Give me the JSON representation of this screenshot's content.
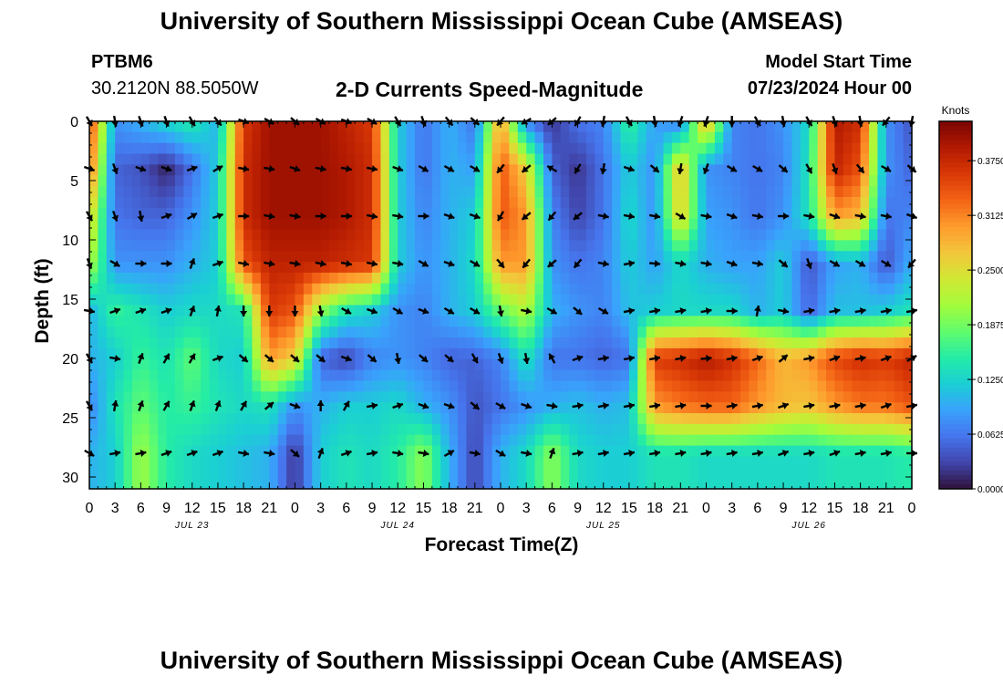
{
  "header": {
    "title": "University of Southern Mississippi Ocean Cube (AMSEAS)",
    "station_id": "PTBM6",
    "station_coords": "30.2120N  88.5050W",
    "chart_title": "2-D Currents Speed-Magnitude",
    "model_start_label": "Model Start Time",
    "model_start_value": "07/23/2024 Hour 00"
  },
  "footer": {
    "title": "University of Southern Mississippi Ocean Cube (AMSEAS)"
  },
  "colors": {
    "colormap": [
      "#30123b",
      "#4145ab",
      "#4675ed",
      "#39a2fc",
      "#1bcfd4",
      "#24eca6",
      "#61fc6c",
      "#a4fc3b",
      "#d1e834",
      "#f3c63a",
      "#fe9b2d",
      "#f36315",
      "#d93806",
      "#b11901",
      "#7a0402"
    ],
    "arrow": "#000000",
    "axis": "#000000"
  },
  "chart_data": {
    "type": "heatmap",
    "title": "2-D Currents Speed-Magnitude",
    "xlabel": "Forecast Time(Z)",
    "ylabel": "Depth (ft)",
    "x_tick_labels": [
      "0",
      "3",
      "6",
      "9",
      "12",
      "15",
      "18",
      "21",
      "0",
      "3",
      "6",
      "9",
      "12",
      "15",
      "18",
      "21",
      "0",
      "3",
      "6",
      "9",
      "12",
      "15",
      "18",
      "21",
      "0",
      "3",
      "6",
      "9",
      "12",
      "15",
      "18",
      "21",
      "0"
    ],
    "date_labels": [
      {
        "label": "JUL 23",
        "hour": 12
      },
      {
        "label": "JUL 24",
        "hour": 36
      },
      {
        "label": "JUL 25",
        "hour": 60
      },
      {
        "label": "JUL 26",
        "hour": 84
      }
    ],
    "x_range_hours": [
      0,
      96
    ],
    "ylim": [
      0,
      31
    ],
    "y_ticks": [
      0,
      5,
      10,
      15,
      20,
      25,
      30
    ],
    "colorbar": {
      "label": "Knots",
      "range": [
        0,
        0.42
      ],
      "ticks": [
        "0.0000",
        "0.0625",
        "0.1250",
        "0.1875",
        "0.2500",
        "0.3125",
        "0.3750"
      ],
      "tick_values": [
        0,
        0.0625,
        0.125,
        0.1875,
        0.25,
        0.3125,
        0.375
      ]
    },
    "depths_ft": [
      0,
      4,
      8,
      12,
      16,
      20,
      24,
      28
    ],
    "hours": [
      0,
      3,
      6,
      9,
      12,
      15,
      18,
      21,
      24,
      27,
      30,
      33,
      36,
      39,
      42,
      45,
      48,
      51,
      54,
      57,
      60,
      63,
      66,
      69,
      72,
      75,
      78,
      81,
      84,
      87,
      90,
      93,
      96
    ],
    "speed_knots": [
      [
        0.36,
        0.08,
        0.1,
        0.13,
        0.15,
        0.1,
        0.36,
        0.4,
        0.4,
        0.4,
        0.38,
        0.36,
        0.12,
        0.06,
        0.1,
        0.06,
        0.3,
        0.07,
        0.02,
        0.06,
        0.07,
        0.16,
        0.09,
        0.06,
        0.3,
        0.07,
        0.06,
        0.08,
        0.13,
        0.39,
        0.37,
        0.08,
        0.04
      ],
      [
        0.33,
        0.05,
        0.04,
        0.01,
        0.06,
        0.12,
        0.37,
        0.4,
        0.4,
        0.4,
        0.39,
        0.37,
        0.12,
        0.06,
        0.1,
        0.09,
        0.34,
        0.26,
        0.05,
        0.02,
        0.06,
        0.12,
        0.08,
        0.28,
        0.08,
        0.07,
        0.06,
        0.07,
        0.14,
        0.38,
        0.34,
        0.08,
        0.05
      ],
      [
        0.26,
        0.06,
        0.05,
        0.05,
        0.08,
        0.12,
        0.37,
        0.4,
        0.4,
        0.4,
        0.39,
        0.37,
        0.12,
        0.07,
        0.1,
        0.12,
        0.34,
        0.3,
        0.07,
        0.03,
        0.06,
        0.13,
        0.08,
        0.27,
        0.09,
        0.08,
        0.06,
        0.08,
        0.14,
        0.3,
        0.28,
        0.06,
        0.07
      ],
      [
        0.22,
        0.08,
        0.08,
        0.08,
        0.1,
        0.12,
        0.34,
        0.38,
        0.38,
        0.38,
        0.37,
        0.36,
        0.12,
        0.08,
        0.1,
        0.13,
        0.3,
        0.3,
        0.08,
        0.06,
        0.07,
        0.12,
        0.09,
        0.13,
        0.1,
        0.09,
        0.09,
        0.12,
        0.04,
        0.09,
        0.1,
        0.04,
        0.1
      ],
      [
        0.1,
        0.16,
        0.14,
        0.12,
        0.13,
        0.13,
        0.14,
        0.36,
        0.34,
        0.2,
        0.14,
        0.12,
        0.08,
        0.07,
        0.1,
        0.12,
        0.18,
        0.22,
        0.1,
        0.08,
        0.07,
        0.11,
        0.12,
        0.13,
        0.13,
        0.13,
        0.1,
        0.12,
        0.05,
        0.11,
        0.11,
        0.12,
        0.14
      ],
      [
        0.1,
        0.12,
        0.16,
        0.14,
        0.18,
        0.13,
        0.12,
        0.3,
        0.26,
        0.05,
        0.03,
        0.07,
        0.08,
        0.07,
        0.05,
        0.05,
        0.07,
        0.14,
        0.06,
        0.06,
        0.05,
        0.06,
        0.36,
        0.37,
        0.39,
        0.37,
        0.33,
        0.28,
        0.3,
        0.35,
        0.37,
        0.36,
        0.38
      ],
      [
        0.07,
        0.14,
        0.18,
        0.15,
        0.16,
        0.14,
        0.13,
        0.14,
        0.08,
        0.1,
        0.12,
        0.12,
        0.13,
        0.1,
        0.08,
        0.04,
        0.06,
        0.08,
        0.1,
        0.11,
        0.1,
        0.11,
        0.3,
        0.32,
        0.33,
        0.33,
        0.3,
        0.28,
        0.27,
        0.3,
        0.32,
        0.32,
        0.34
      ],
      [
        0.1,
        0.12,
        0.21,
        0.15,
        0.13,
        0.12,
        0.11,
        0.1,
        0.02,
        0.12,
        0.14,
        0.13,
        0.15,
        0.2,
        0.1,
        0.03,
        0.1,
        0.13,
        0.2,
        0.13,
        0.12,
        0.12,
        0.14,
        0.14,
        0.13,
        0.13,
        0.13,
        0.13,
        0.13,
        0.14,
        0.14,
        0.14,
        0.15
      ]
    ],
    "arrow_direction_deg_math": [
      [
        -60,
        -80,
        -70,
        -70,
        -60,
        -50,
        -20,
        -30,
        -40,
        -30,
        -20,
        -30,
        -60,
        -70,
        -50,
        -40,
        -130,
        -150,
        -140,
        -120,
        -100,
        -60,
        -80,
        -110,
        -110,
        -90,
        -60,
        -80,
        -60,
        -70,
        -80,
        -130,
        -100
      ],
      [
        -20,
        -70,
        -20,
        -20,
        20,
        30,
        -10,
        -10,
        -20,
        -10,
        -10,
        -10,
        -20,
        -30,
        -30,
        -30,
        -130,
        -140,
        150,
        -120,
        -100,
        -20,
        -40,
        -100,
        -110,
        -30,
        -30,
        -40,
        -60,
        -70,
        -50,
        -30,
        -40
      ],
      [
        -60,
        -70,
        -80,
        20,
        30,
        20,
        0,
        -10,
        -10,
        0,
        0,
        -10,
        -10,
        0,
        -20,
        -20,
        -120,
        -140,
        -130,
        -140,
        -10,
        -10,
        -10,
        -30,
        -10,
        -20,
        -10,
        0,
        -10,
        -20,
        -10,
        -10,
        -20
      ],
      [
        -70,
        -30,
        0,
        0,
        70,
        20,
        -10,
        -10,
        -10,
        -10,
        -10,
        -10,
        -10,
        -30,
        -20,
        -30,
        -50,
        -130,
        -140,
        -130,
        -10,
        10,
        -5,
        -10,
        -10,
        -20,
        -10,
        -40,
        -70,
        -30,
        -30,
        -30,
        -130
      ],
      [
        -10,
        20,
        20,
        20,
        70,
        80,
        -90,
        -90,
        -90,
        -80,
        -30,
        -20,
        -30,
        -20,
        -30,
        -30,
        -80,
        -10,
        -30,
        -40,
        -30,
        10,
        10,
        10,
        10,
        0,
        80,
        -10,
        10,
        10,
        10,
        10,
        10
      ],
      [
        -60,
        -10,
        70,
        60,
        60,
        20,
        -40,
        -40,
        -40,
        -40,
        -20,
        -40,
        -80,
        -40,
        -40,
        -60,
        -70,
        -80,
        120,
        20,
        10,
        10,
        10,
        10,
        5,
        10,
        20,
        40,
        10,
        20,
        10,
        20,
        30
      ],
      [
        -60,
        80,
        70,
        60,
        70,
        70,
        60,
        40,
        -20,
        90,
        60,
        10,
        20,
        -20,
        -20,
        -40,
        -30,
        -20,
        -10,
        10,
        10,
        10,
        10,
        10,
        0,
        10,
        10,
        20,
        10,
        10,
        10,
        20,
        10
      ],
      [
        -30,
        10,
        10,
        20,
        20,
        20,
        -10,
        -10,
        -40,
        70,
        20,
        10,
        -10,
        -10,
        30,
        -10,
        -30,
        -10,
        70,
        10,
        10,
        10,
        10,
        10,
        10,
        10,
        10,
        20,
        10,
        20,
        10,
        10,
        0
      ]
    ]
  }
}
